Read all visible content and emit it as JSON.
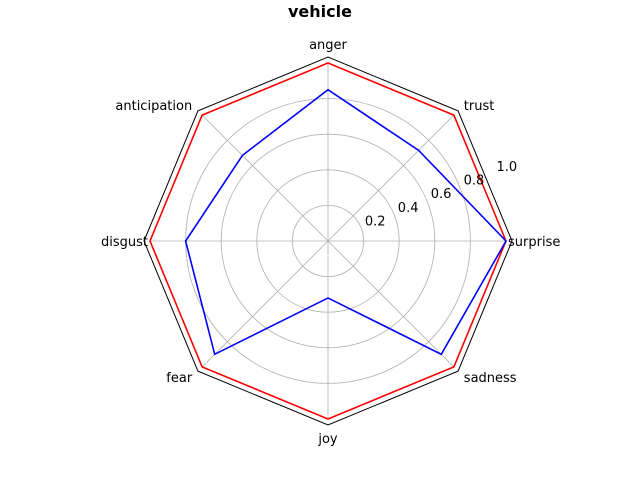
{
  "chart_data": {
    "type": "radar",
    "title": "vehicle",
    "categories": [
      "surprise",
      "trust",
      "anger",
      "anticipation",
      "disgust",
      "fear",
      "joy",
      "sadness"
    ],
    "rticks": [
      0.2,
      0.4,
      0.6,
      0.8,
      1.0
    ],
    "rtick_labels": [
      "0.2",
      "0.4",
      "0.6",
      "0.8",
      "1.0"
    ],
    "rlim": [
      0,
      1.0
    ],
    "grid": true,
    "series": [
      {
        "color": "#ff0000",
        "values": [
          1.0,
          1.0,
          1.0,
          1.0,
          1.0,
          1.0,
          1.0,
          1.0
        ]
      },
      {
        "color": "#0000ff",
        "values": [
          1.0,
          0.72,
          0.85,
          0.68,
          0.8,
          0.9,
          0.32,
          0.9
        ]
      }
    ]
  }
}
